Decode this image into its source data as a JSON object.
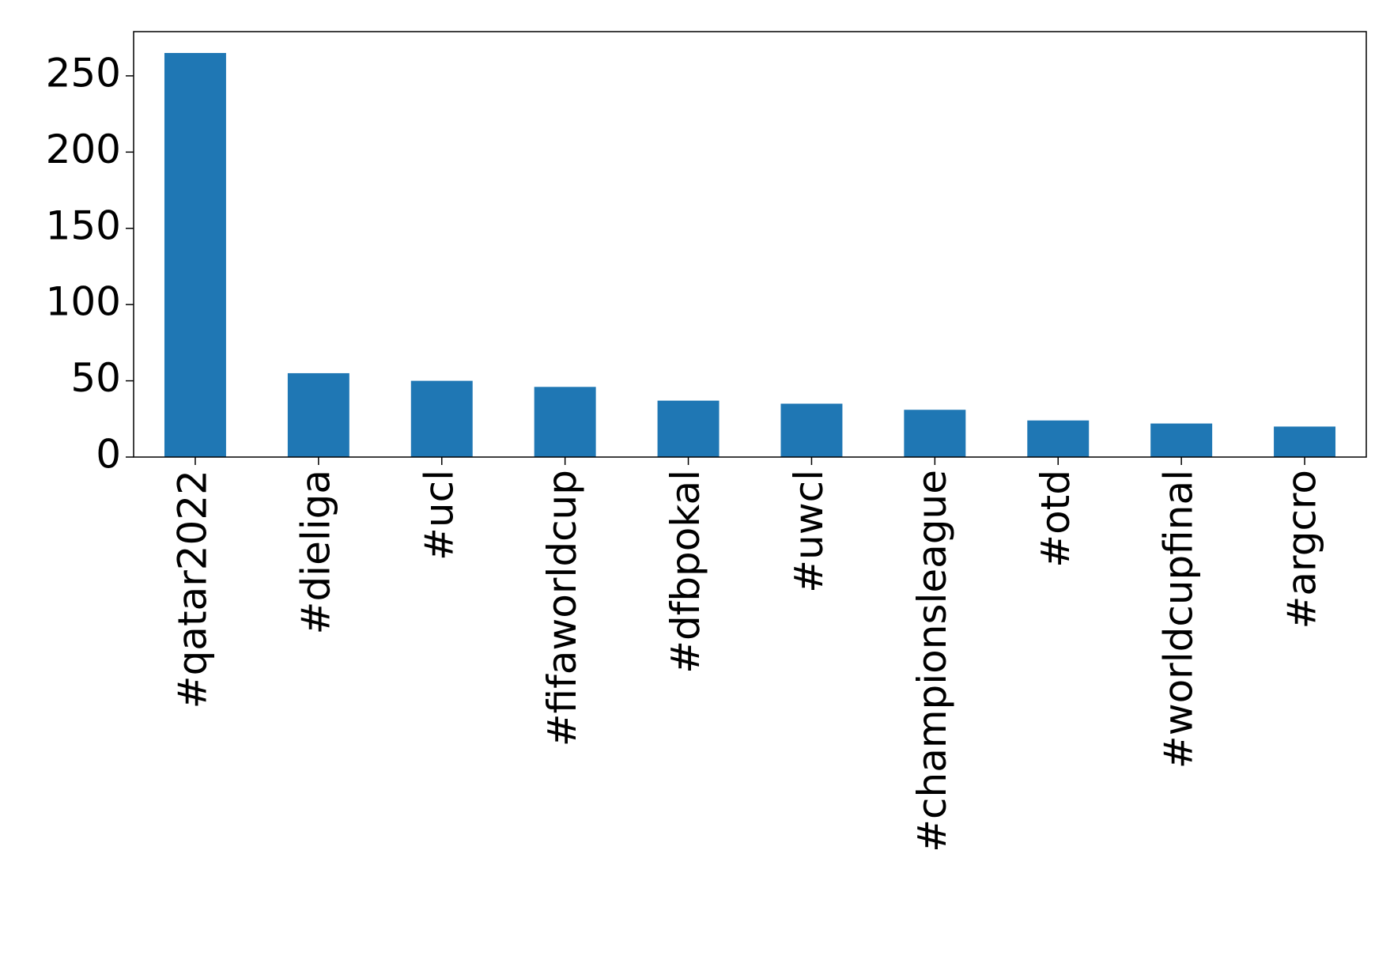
{
  "chart_data": {
    "type": "bar",
    "categories": [
      "#qatar2022",
      "#dieliga",
      "#ucl",
      "#fifaworldcup",
      "#dfbpokal",
      "#uwcl",
      "#championsleague",
      "#otd",
      "#worldcupfinal",
      "#argcro"
    ],
    "values": [
      265,
      55,
      50,
      46,
      37,
      35,
      31,
      24,
      22,
      20
    ],
    "color": "#1f77b4",
    "ylim": [
      0,
      279
    ],
    "yticks": [
      0,
      50,
      100,
      150,
      200,
      250
    ],
    "grid": false
  }
}
